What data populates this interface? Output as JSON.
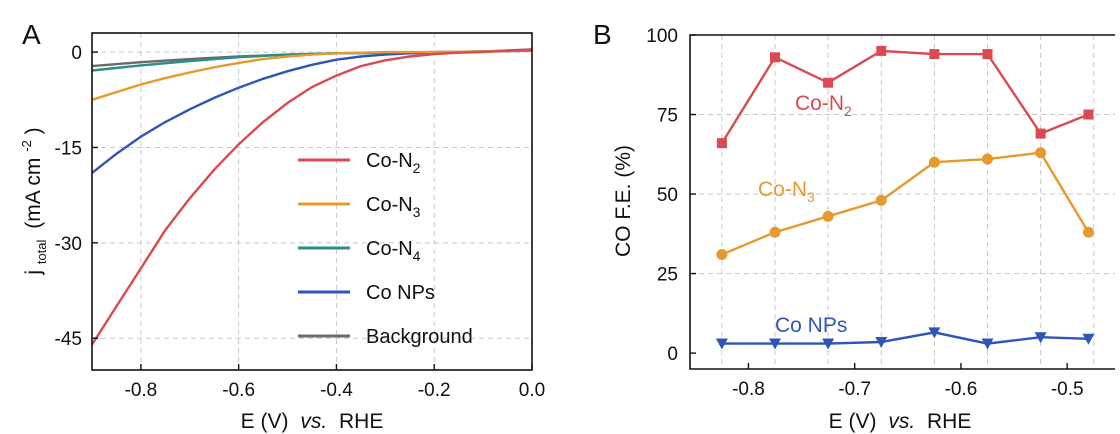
{
  "chart_data": [
    {
      "panel": "A",
      "type": "line",
      "xlabel_main": "E (V)",
      "xlabel_italic": "vs.",
      "xlabel_tail": "RHE",
      "ylabel_j": "j",
      "ylabel_sub": "total",
      "ylabel_units": "(mA cm",
      "ylabel_exp": "-2",
      "ylabel_close": ")",
      "xlim": [
        -0.9,
        0.0
      ],
      "ylim": [
        -50,
        3
      ],
      "xticks": [
        -0.8,
        -0.6,
        -0.4,
        -0.2,
        0.0
      ],
      "xtick_labels": [
        "-0.8",
        "-0.6",
        "-0.4",
        "-0.2",
        "0.0"
      ],
      "yticks": [
        0,
        -15,
        -30,
        -45
      ],
      "ytick_labels": [
        "0",
        "-15",
        "-30",
        "-45"
      ],
      "grid": true,
      "legend_position": "lower-right",
      "series": [
        {
          "name": "Co-N",
          "sub": "2",
          "color": "#d94a52",
          "x": [
            -0.9,
            -0.85,
            -0.8,
            -0.75,
            -0.7,
            -0.65,
            -0.6,
            -0.55,
            -0.5,
            -0.45,
            -0.4,
            -0.35,
            -0.3,
            -0.25,
            -0.2,
            -0.15,
            -0.1,
            -0.05,
            0.0
          ],
          "y": [
            -46,
            -40,
            -34,
            -28,
            -23,
            -18.5,
            -14.5,
            -11,
            -8,
            -5.5,
            -3.7,
            -2.2,
            -1.3,
            -0.7,
            -0.3,
            -0.1,
            0,
            0.2,
            0.4
          ]
        },
        {
          "name": "Co-N",
          "sub": "3",
          "color": "#e69a2e",
          "x": [
            -0.9,
            -0.85,
            -0.8,
            -0.75,
            -0.7,
            -0.65,
            -0.6,
            -0.55,
            -0.5,
            -0.45,
            -0.4,
            -0.35,
            -0.3,
            -0.2,
            -0.1,
            0.0
          ],
          "y": [
            -7.5,
            -6.3,
            -5.1,
            -4.1,
            -3.2,
            -2.4,
            -1.7,
            -1.1,
            -0.7,
            -0.4,
            -0.2,
            -0.1,
            0,
            0,
            0.1,
            0.3
          ]
        },
        {
          "name": "Co-N",
          "sub": "4",
          "color": "#2a8f84",
          "x": [
            -0.9,
            -0.8,
            -0.7,
            -0.6,
            -0.5,
            -0.4,
            -0.3,
            -0.2,
            -0.1,
            0.0
          ],
          "y": [
            -2.9,
            -2.1,
            -1.4,
            -0.8,
            -0.4,
            -0.2,
            -0.1,
            0,
            0.1,
            0.3
          ]
        },
        {
          "name": "Co NPs",
          "sub": "",
          "color": "#2f55b8",
          "x": [
            -0.9,
            -0.85,
            -0.8,
            -0.75,
            -0.7,
            -0.65,
            -0.6,
            -0.55,
            -0.5,
            -0.45,
            -0.4,
            -0.35,
            -0.3,
            -0.25,
            -0.2,
            -0.1,
            0.0
          ],
          "y": [
            -19,
            -16,
            -13.3,
            -11,
            -9,
            -7.2,
            -5.6,
            -4.2,
            -3,
            -2,
            -1.2,
            -0.7,
            -0.4,
            -0.2,
            -0.1,
            0.1,
            0.4
          ]
        },
        {
          "name": "Background",
          "sub": "",
          "color": "#6b6b6b",
          "x": [
            -0.9,
            -0.8,
            -0.7,
            -0.6,
            -0.5,
            -0.4,
            -0.3,
            -0.2,
            -0.1,
            0.0
          ],
          "y": [
            -2.2,
            -1.6,
            -1.1,
            -0.7,
            -0.4,
            -0.2,
            -0.1,
            0,
            0.1,
            0.2
          ]
        }
      ]
    },
    {
      "panel": "B",
      "type": "line",
      "xlabel_main": "E (V)",
      "xlabel_italic": "vs.",
      "xlabel_tail": "RHE",
      "ylabel": "CO F.E. (%)",
      "xlim": [
        -0.855,
        -0.455
      ],
      "ylim": [
        -5,
        100
      ],
      "xticks": [
        -0.8,
        -0.7,
        -0.6,
        -0.5
      ],
      "xtick_labels": [
        "-0.8",
        "-0.7",
        "-0.6",
        "-0.5"
      ],
      "yticks": [
        0,
        25,
        50,
        75,
        100
      ],
      "ytick_labels": [
        "0",
        "25",
        "50",
        "75",
        "100"
      ],
      "grid": true,
      "x": [
        -0.825,
        -0.775,
        -0.725,
        -0.675,
        -0.625,
        -0.575,
        -0.525,
        -0.48
      ],
      "series": [
        {
          "name": "Co-N",
          "sub": "2",
          "color": "#d94a52",
          "marker": "square",
          "values": [
            66,
            93,
            85,
            95,
            94,
            94,
            69,
            75
          ]
        },
        {
          "name": "Co-N",
          "sub": "3",
          "color": "#e69a2e",
          "marker": "circle",
          "values": [
            31,
            38,
            43,
            48,
            60,
            61,
            63,
            38
          ]
        },
        {
          "name": "Co NPs",
          "sub": "",
          "color": "#2f55b8",
          "marker": "triangle-down",
          "values": [
            3,
            3,
            3,
            3.5,
            6.5,
            3,
            5,
            4.5
          ]
        }
      ]
    }
  ]
}
